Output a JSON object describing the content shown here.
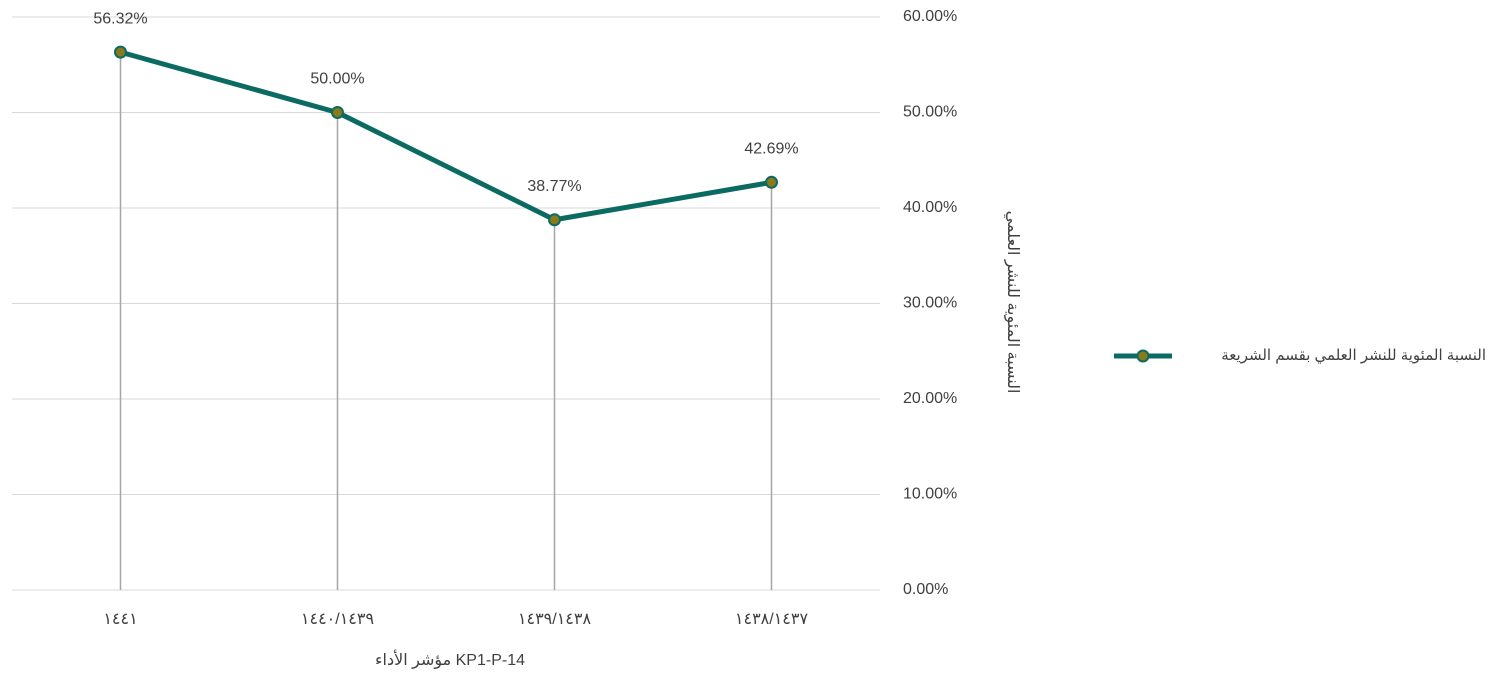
{
  "chart_data": {
    "type": "line",
    "categories": [
      "١٤٤١",
      "١٤٤٠/١٤٣٩",
      "١٤٣٩/١٤٣٨",
      "١٤٣٨/١٤٣٧"
    ],
    "series": [
      {
        "name": "النسبة المئوية للنشر العلمي بقسم الشريعة",
        "color": "#0b6b63",
        "marker_color": "#8a7a1a",
        "values": [
          56.32,
          50.0,
          38.77,
          42.69
        ],
        "value_labels": [
          "56.32%",
          "50.00%",
          "38.77%",
          "42.69%"
        ]
      }
    ],
    "ylim": [
      0,
      60
    ],
    "yticks": [
      {
        "value": 0,
        "label": "0.00%"
      },
      {
        "value": 10,
        "label": "10.00%"
      },
      {
        "value": 20,
        "label": "20.00%"
      },
      {
        "value": 30,
        "label": "30.00%"
      },
      {
        "value": 40,
        "label": "40.00%"
      },
      {
        "value": 50,
        "label": "50.00%"
      },
      {
        "value": 60,
        "label": "60.00%"
      }
    ],
    "y_axis_side": "right",
    "x_label": "مؤشر الأداء KP1-P-14",
    "y_label": "النسبة المئوية للنشر العلمي",
    "grid": true,
    "drop_lines": true,
    "legend": "right"
  }
}
